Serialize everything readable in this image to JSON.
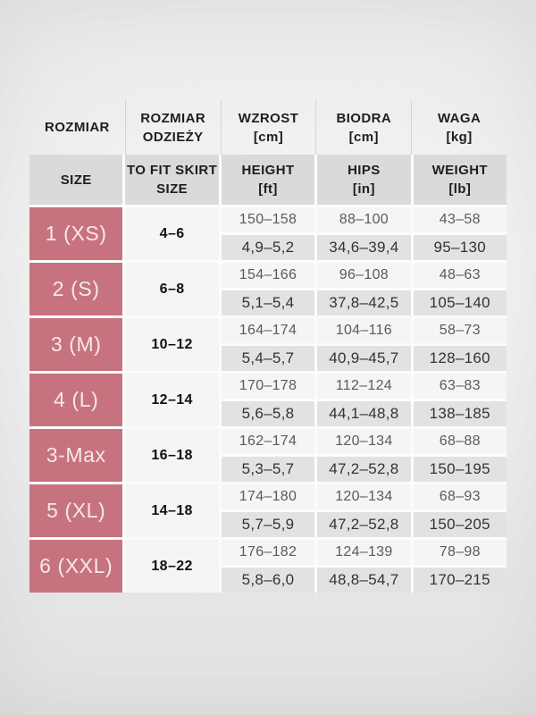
{
  "colors": {
    "accent_pink": "#c6737f",
    "header_band_gray": "#dadada",
    "row_light": "#f5f5f5",
    "row_dark": "#e2e2e2"
  },
  "table": {
    "header_pl": [
      "ROZMIAR",
      "ROZMIAR\nODZIEŻY",
      "WZROST\n[cm]",
      "BIODRA\n[cm]",
      "WAGA\n[kg]"
    ],
    "header_en": [
      "SIZE",
      "TO FIT SKIRT\nSIZE",
      "HEIGHT\n[ft]",
      "HIPS\n[in]",
      "WEIGHT\n[lb]"
    ],
    "rows": [
      {
        "size": "1 (XS)",
        "skirt": "4–6",
        "metric": {
          "height": "150–158",
          "hips": "88–100",
          "weight": "43–58"
        },
        "imperial": {
          "height": "4,9–5,2",
          "hips": "34,6–39,4",
          "weight": "95–130"
        }
      },
      {
        "size": "2 (S)",
        "skirt": "6–8",
        "metric": {
          "height": "154–166",
          "hips": "96–108",
          "weight": "48–63"
        },
        "imperial": {
          "height": "5,1–5,4",
          "hips": "37,8–42,5",
          "weight": "105–140"
        }
      },
      {
        "size": "3 (M)",
        "skirt": "10–12",
        "metric": {
          "height": "164–174",
          "hips": "104–116",
          "weight": "58–73"
        },
        "imperial": {
          "height": "5,4–5,7",
          "hips": "40,9–45,7",
          "weight": "128–160"
        }
      },
      {
        "size": "4 (L)",
        "skirt": "12–14",
        "metric": {
          "height": "170–178",
          "hips": "112–124",
          "weight": "63–83"
        },
        "imperial": {
          "height": "5,6–5,8",
          "hips": "44,1–48,8",
          "weight": "138–185"
        }
      },
      {
        "size": "3-Max",
        "skirt": "16–18",
        "metric": {
          "height": "162–174",
          "hips": "120–134",
          "weight": "68–88"
        },
        "imperial": {
          "height": "5,3–5,7",
          "hips": "47,2–52,8",
          "weight": "150–195"
        }
      },
      {
        "size": "5 (XL)",
        "skirt": "14–18",
        "metric": {
          "height": "174–180",
          "hips": "120–134",
          "weight": "68–93"
        },
        "imperial": {
          "height": "5,7–5,9",
          "hips": "47,2–52,8",
          "weight": "150–205"
        }
      },
      {
        "size": "6 (XXL)",
        "skirt": "18–22",
        "metric": {
          "height": "176–182",
          "hips": "124–139",
          "weight": "78–98"
        },
        "imperial": {
          "height": "5,8–6,0",
          "hips": "48,8–54,7",
          "weight": "170–215"
        }
      }
    ]
  }
}
